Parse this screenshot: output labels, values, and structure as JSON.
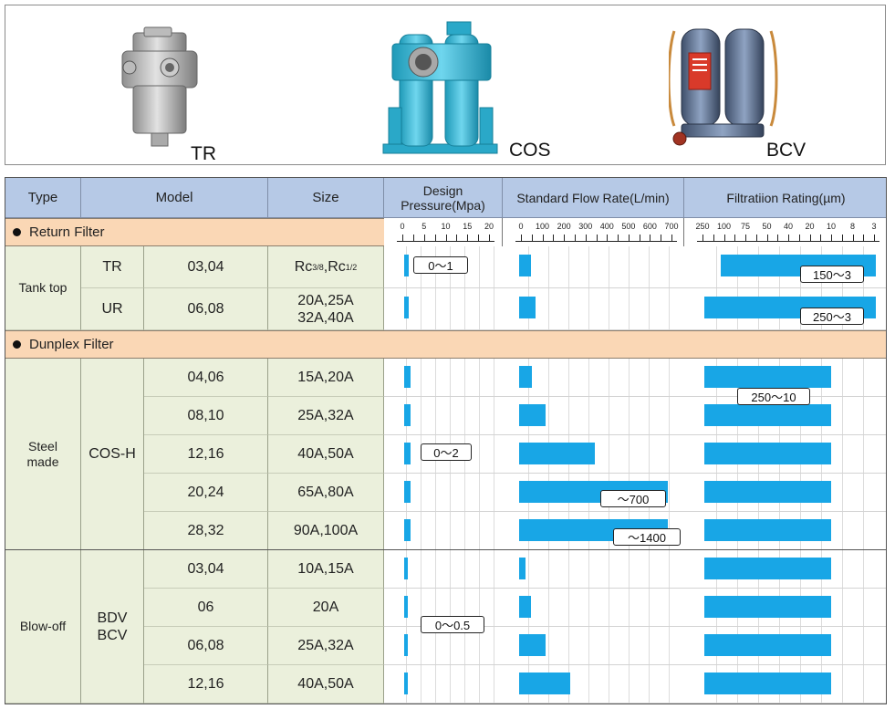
{
  "products": [
    {
      "label": "TR",
      "image": "tank-top-return-filter-photo"
    },
    {
      "label": "COS",
      "image": "duplex-strainer-photo"
    },
    {
      "label": "BCV",
      "image": "blow-off-duplex-filter-photo"
    }
  ],
  "headers": {
    "type": "Type",
    "model": "Model",
    "size": "Size",
    "pressure_line1": "Design",
    "pressure_line2": "Pressure(Mpa)",
    "flow": "Standard Flow Rate(L/min)",
    "filtration": "Filtratiion Rating(µm)"
  },
  "scales": {
    "pressure": {
      "labels": [
        "0",
        "5",
        "10",
        "15",
        "20"
      ],
      "range": [
        0,
        20
      ]
    },
    "flow": {
      "labels": [
        "0",
        "100",
        "200",
        "300",
        "400",
        "500",
        "600",
        "700"
      ],
      "range": [
        0,
        700
      ]
    },
    "filtration": {
      "labels": [
        "250",
        "100",
        "75",
        "50",
        "40",
        "20",
        "10",
        "8",
        "3"
      ]
    }
  },
  "sections": [
    {
      "title": "Return Filter",
      "groups": [
        {
          "type": "Tank top",
          "series": "",
          "rows": [
            {
              "series": "TR",
              "model": "03,04",
              "size_html": "Rc<sup>3/8</sup>,Rc<sup>1/2</sup>",
              "size": "Rc3/8,Rc1/2",
              "pressure": 1,
              "flow": 40,
              "filt_from": "150",
              "filt_to": "3"
            },
            {
              "series": "UR",
              "model": "06,08",
              "size": "20A,25A\n32A,40A",
              "pressure": 1,
              "flow": 80,
              "filt_from": "250",
              "filt_to": "3"
            }
          ],
          "pressure_label": "0～1",
          "filtration_labels": [
            "150～3",
            "250～3"
          ]
        }
      ]
    },
    {
      "title": "Dunplex Filter",
      "groups": [
        {
          "type": "Steel made",
          "series": "COS-H",
          "rows": [
            {
              "model": "04,06",
              "size": "15A,20A",
              "pressure": 2,
              "flow": 45
            },
            {
              "model": "08,10",
              "size": "25A,32A",
              "pressure": 2,
              "flow": 100
            },
            {
              "model": "12,16",
              "size": "40A,50A",
              "pressure": 2,
              "flow": 300
            },
            {
              "model": "20,24",
              "size": "65A,80A",
              "pressure": 2,
              "flow": 700
            },
            {
              "model": "28,32",
              "size": "90A,100A",
              "pressure": 2,
              "flow": 1400
            }
          ],
          "pressure_label": "0～2",
          "flow_labels": [
            "～700",
            "～1400"
          ],
          "filtration_label": "250～10"
        },
        {
          "type": "Blow-off",
          "series": "BDV\nBCV",
          "rows": [
            {
              "model": "03,04",
              "size": "10A,15A",
              "pressure": 0.5,
              "flow": 20
            },
            {
              "model": "06",
              "size": "20A",
              "pressure": 0.5,
              "flow": 40
            },
            {
              "model": "06,08",
              "size": "25A,32A",
              "pressure": 0.5,
              "flow": 100
            },
            {
              "model": "12,16",
              "size": "40A,50A",
              "pressure": 0.5,
              "flow": 200
            }
          ],
          "pressure_label": "0～0.5"
        }
      ]
    }
  ],
  "colors": {
    "header": "#b6c9e6",
    "band": "#fad7b5",
    "cell": "#ebf0dc",
    "bar": "#18a6e6"
  }
}
